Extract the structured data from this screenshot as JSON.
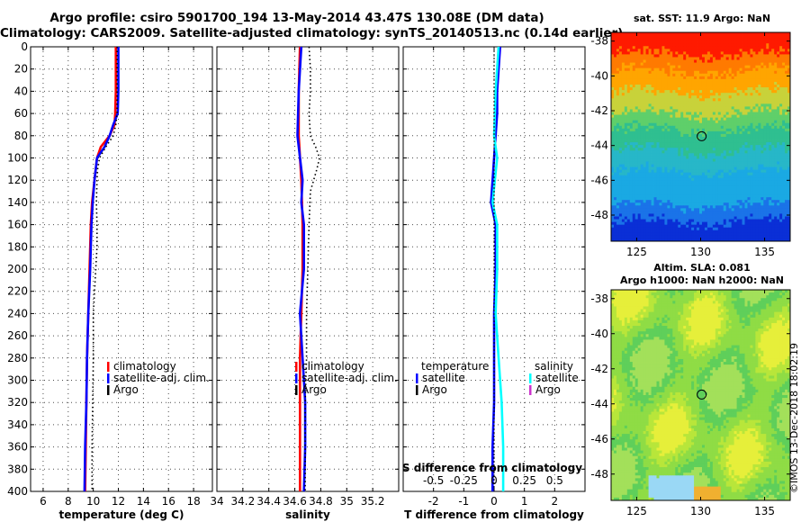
{
  "header": {
    "line1": "Argo profile: csiro 5901700_194 13-May-2014 43.47S 130.08E (DM data)",
    "line2": "Climatology: CARS2009. Satellite-adjusted climatology: synTS_20140513.nc (0.14d earlier)"
  },
  "sst_map": {
    "title": "sat. SST: 11.9 Argo: NaN",
    "xticks": [
      125,
      130,
      135
    ],
    "yticks": [
      -38,
      -40,
      -42,
      -44,
      -46,
      -48
    ],
    "xlim": [
      123,
      137
    ],
    "ylim": [
      -49.5,
      -37.5
    ],
    "marker": {
      "lon": 130.08,
      "lat": -43.47
    }
  },
  "sla_map": {
    "title1": "Altim. SLA: 0.081",
    "title2": "Argo h1000: NaN h2000: NaN",
    "xticks": [
      125,
      130,
      135
    ],
    "yticks": [
      -38,
      -40,
      -42,
      -44,
      -46,
      -48
    ],
    "xlim": [
      123,
      137
    ],
    "ylim": [
      -49.5,
      -37.5
    ],
    "marker": {
      "lon": 130.08,
      "lat": -43.47
    }
  },
  "credit": "©IMOS 13-Dec-2018 18:02:19",
  "colors": {
    "climatology": "#ff0000",
    "satellite": "#0000ff",
    "argo": "#000000",
    "sat_salinity": "#00ffff",
    "argo_salinity": "#cc33cc"
  },
  "chart_data": [
    {
      "type": "line",
      "name": "temperature-panel",
      "xlabel": "temperature (deg C)",
      "ylabel": "depth",
      "xlim": [
        5,
        19.5
      ],
      "ylim": [
        400,
        0
      ],
      "xticks": [
        6,
        8,
        10,
        12,
        14,
        16,
        18
      ],
      "yticks": [
        0,
        20,
        40,
        60,
        80,
        100,
        120,
        140,
        160,
        180,
        200,
        220,
        240,
        260,
        280,
        300,
        320,
        340,
        360,
        380,
        400
      ],
      "legend": [
        "climatology",
        "satellite-adj. clim.",
        "Argo"
      ],
      "series": [
        {
          "name": "climatology",
          "color": "#ff0000",
          "depth": [
            0,
            40,
            60,
            70,
            80,
            90,
            100,
            110,
            120,
            140,
            160,
            180,
            200,
            240,
            280,
            320,
            360,
            400
          ],
          "values": [
            11.8,
            11.8,
            11.75,
            11.7,
            11.3,
            10.6,
            10.3,
            10.2,
            10.1,
            9.9,
            9.8,
            9.75,
            9.7,
            9.6,
            9.5,
            9.45,
            9.4,
            9.35
          ]
        },
        {
          "name": "satellite-adj. clim.",
          "color": "#0000ff",
          "depth": [
            0,
            40,
            60,
            70,
            80,
            90,
            100,
            110,
            120,
            140,
            160,
            180,
            200,
            240,
            280,
            320,
            360,
            400
          ],
          "values": [
            12.0,
            12.0,
            11.95,
            11.6,
            11.3,
            10.9,
            10.3,
            10.2,
            10.1,
            9.95,
            9.85,
            9.8,
            9.75,
            9.6,
            9.5,
            9.45,
            9.35,
            9.3
          ]
        },
        {
          "name": "Argo",
          "color": "#000000",
          "dotted": true,
          "depth": [
            0,
            40,
            60,
            70,
            80,
            90,
            100,
            110,
            120,
            140,
            160,
            180,
            200,
            240,
            280,
            320,
            360,
            400
          ],
          "values": [
            11.9,
            11.9,
            11.9,
            11.8,
            11.6,
            11.0,
            10.5,
            10.35,
            10.3,
            10.25,
            10.3,
            10.3,
            10.2,
            10.0,
            10.0,
            9.95,
            9.9,
            9.9
          ]
        }
      ]
    },
    {
      "type": "line",
      "name": "salinity-panel",
      "xlabel": "salinity",
      "xlim": [
        34,
        35.4
      ],
      "ylim": [
        400,
        0
      ],
      "xticks": [
        34,
        34.2,
        34.4,
        34.6,
        34.8,
        35,
        35.2
      ],
      "legend": [
        "climatology",
        "satellite-adj. clim.",
        "Argo"
      ],
      "series": [
        {
          "name": "climatology",
          "color": "#ff0000",
          "depth": [
            0,
            40,
            80,
            120,
            160,
            200,
            240,
            280,
            320,
            360,
            400
          ],
          "values": [
            34.64,
            34.63,
            34.63,
            34.65,
            34.66,
            34.66,
            34.65,
            34.64,
            34.64,
            34.64,
            34.64
          ]
        },
        {
          "name": "satellite-adj. clim.",
          "color": "#0000ff",
          "depth": [
            0,
            40,
            80,
            120,
            140,
            160,
            200,
            240,
            280,
            300,
            320,
            360,
            400
          ],
          "values": [
            34.65,
            34.63,
            34.62,
            34.66,
            34.65,
            34.67,
            34.67,
            34.64,
            34.66,
            34.67,
            34.68,
            34.68,
            34.67
          ]
        },
        {
          "name": "Argo",
          "color": "#000000",
          "dotted": true,
          "depth": [
            0,
            20,
            40,
            60,
            80,
            90,
            100,
            110,
            130,
            160,
            200,
            240,
            280,
            320,
            360,
            400
          ],
          "values": [
            34.71,
            34.72,
            34.72,
            34.71,
            34.72,
            34.76,
            34.79,
            34.77,
            34.72,
            34.71,
            34.7,
            34.69,
            34.69,
            34.68,
            34.68,
            34.68
          ]
        }
      ]
    },
    {
      "type": "line",
      "name": "difference-panel",
      "xlabel": "T difference from climatology",
      "x2label": "S difference from climatology",
      "xlim": [
        -3,
        3
      ],
      "ylim": [
        400,
        0
      ],
      "xticks": [
        -2,
        -1,
        0,
        1,
        2
      ],
      "x2ticks": [
        "-0.5",
        "-0.25",
        "0",
        "0.25",
        "0.5"
      ],
      "legend_temperature": {
        "heading": "temperature",
        "items": [
          "satellite",
          "Argo"
        ]
      },
      "legend_salinity": {
        "heading": "salinity",
        "items": [
          "satellite",
          "Argo"
        ]
      },
      "series": [
        {
          "name": "temperature satellite",
          "color": "#0000ff",
          "depth": [
            0,
            40,
            60,
            80,
            100,
            120,
            140,
            160,
            200,
            240,
            280,
            320,
            360,
            400
          ],
          "values": [
            0.2,
            0.1,
            0.1,
            0.05,
            0.0,
            -0.05,
            -0.1,
            0.05,
            0.05,
            0.0,
            0.0,
            0.0,
            -0.05,
            -0.05
          ]
        },
        {
          "name": "salinity satellite",
          "color": "#00ffff",
          "depth": [
            0,
            40,
            80,
            100,
            140,
            160,
            200,
            240,
            280,
            320,
            360,
            400
          ],
          "values": [
            0.15,
            0.05,
            0.0,
            0.1,
            -0.05,
            0.1,
            0.1,
            0.05,
            0.15,
            0.25,
            0.3,
            0.3
          ]
        }
      ]
    }
  ]
}
